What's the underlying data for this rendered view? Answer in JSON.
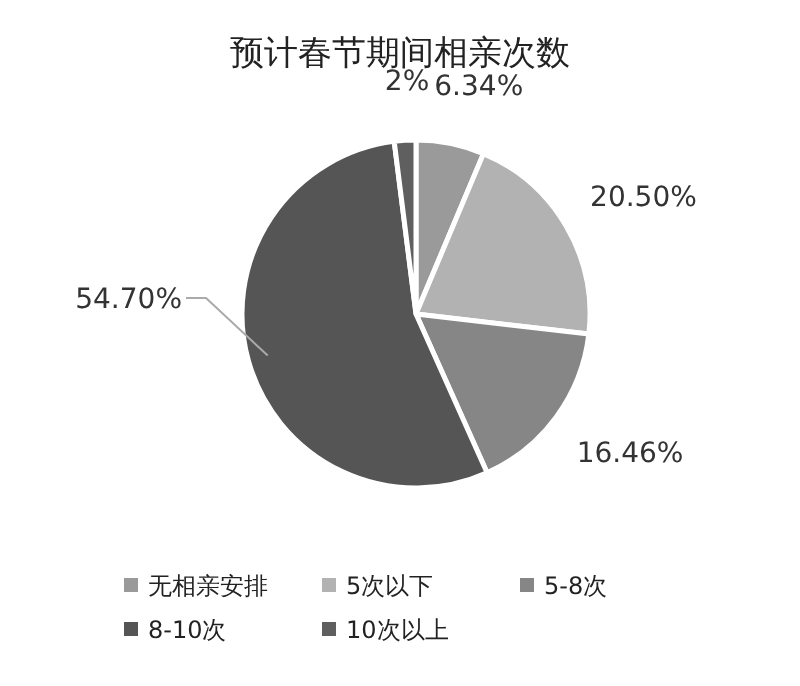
{
  "chart_data": {
    "type": "pie",
    "title": "预计春节期间相亲次数",
    "categories": [
      "无相亲安排",
      "5次以下",
      "5-8次",
      "8-10次",
      "10次以上"
    ],
    "values": [
      6.34,
      20.5,
      16.46,
      54.7,
      2
    ],
    "value_labels": [
      "6.34%",
      "20.50%",
      "16.46%",
      "54.70%",
      "2%"
    ],
    "colors": [
      "#9a9a9a",
      "#b2b2b2",
      "#868686",
      "#555555",
      "#5f5f5f"
    ],
    "legend": "bottom"
  }
}
